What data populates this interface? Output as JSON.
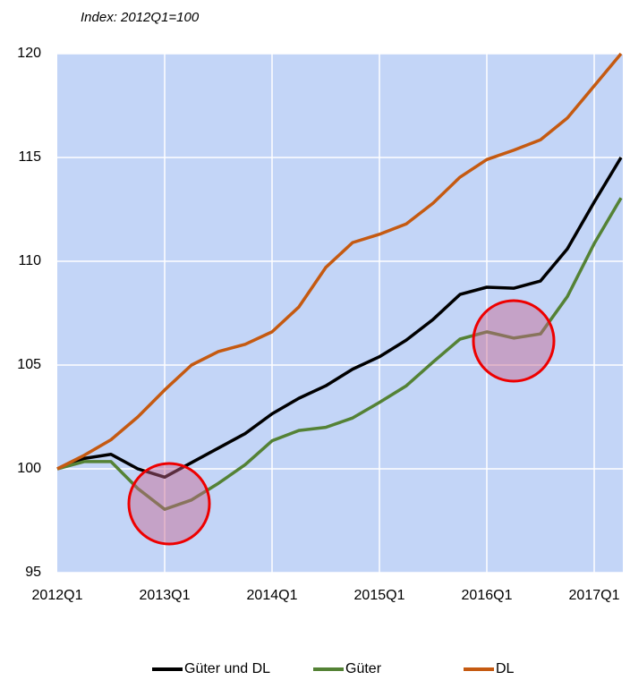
{
  "chart_data": {
    "type": "line",
    "subtitle": "Index: 2012Q1=100",
    "categories": [
      "2012Q1",
      null,
      null,
      null,
      "2013Q1",
      null,
      null,
      null,
      "2014Q1",
      null,
      null,
      null,
      "2015Q1",
      null,
      null,
      null,
      "2016Q1",
      null,
      null,
      null,
      "2017Q1",
      null
    ],
    "series": [
      {
        "name": "Güter und DL",
        "color": "#000000",
        "values": [
          100,
          100.5,
          100.7,
          100,
          99.6,
          100.3,
          101.0,
          101.7,
          102.65,
          103.4,
          104.0,
          104.8,
          105.4,
          106.2,
          107.2,
          108.4,
          108.75,
          108.7,
          109.05,
          110.6,
          112.85,
          115.0
        ]
      },
      {
        "name": "Güter",
        "color": "#548235",
        "values": [
          100,
          100.35,
          100.35,
          99.05,
          98.05,
          98.5,
          99.3,
          100.2,
          101.35,
          101.85,
          102.0,
          102.45,
          103.2,
          104.0,
          105.15,
          106.25,
          106.6,
          106.3,
          106.5,
          108.3,
          110.85,
          113.05
        ]
      },
      {
        "name": "DL",
        "color": "#c55a11",
        "values": [
          100,
          100.65,
          101.4,
          102.5,
          103.8,
          105.0,
          105.65,
          106.0,
          106.6,
          107.8,
          109.7,
          110.9,
          111.3,
          111.8,
          112.8,
          114.05,
          114.9,
          115.35,
          115.85,
          116.9,
          118.45,
          120
        ]
      }
    ],
    "ylim": [
      95,
      120
    ],
    "yticks": [
      95,
      100,
      105,
      110,
      115,
      120
    ],
    "grid": true
  }
}
